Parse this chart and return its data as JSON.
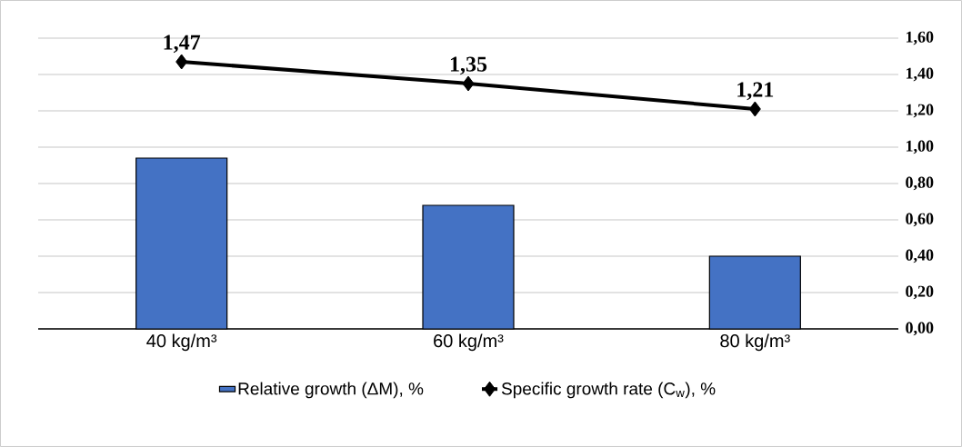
{
  "chart_data": {
    "type": "bar",
    "categories": [
      "40 kg/m³",
      "60 kg/m³",
      "80 kg/m³"
    ],
    "series": [
      {
        "name": "Relative growth (ΔM), %",
        "color": "#4472c4",
        "values": [
          0.94,
          0.68,
          0.4
        ]
      },
      {
        "name": "Specific growth rate (C$_{w}$), %",
        "type": "line",
        "color": "#000000",
        "marker": "diamond",
        "values": [
          1.47,
          1.35,
          1.21
        ],
        "value_labels": [
          "1,47",
          "1,35",
          "1,21"
        ]
      }
    ],
    "ylim": [
      0,
      1.6
    ],
    "yticks": [
      {
        "value": 0,
        "label": "0,00"
      },
      {
        "value": 0.2,
        "label": "0,20"
      },
      {
        "value": 0.4,
        "label": "0,40"
      },
      {
        "value": 0.6,
        "label": "0,60"
      },
      {
        "value": 0.8,
        "label": "0,80"
      },
      {
        "value": 1.0,
        "label": "1,00"
      },
      {
        "value": 1.2,
        "label": "1,20"
      },
      {
        "value": 1.4,
        "label": "1,40"
      },
      {
        "value": 1.6,
        "label": "1,60"
      }
    ],
    "grid": "y",
    "legend": "bottom"
  }
}
